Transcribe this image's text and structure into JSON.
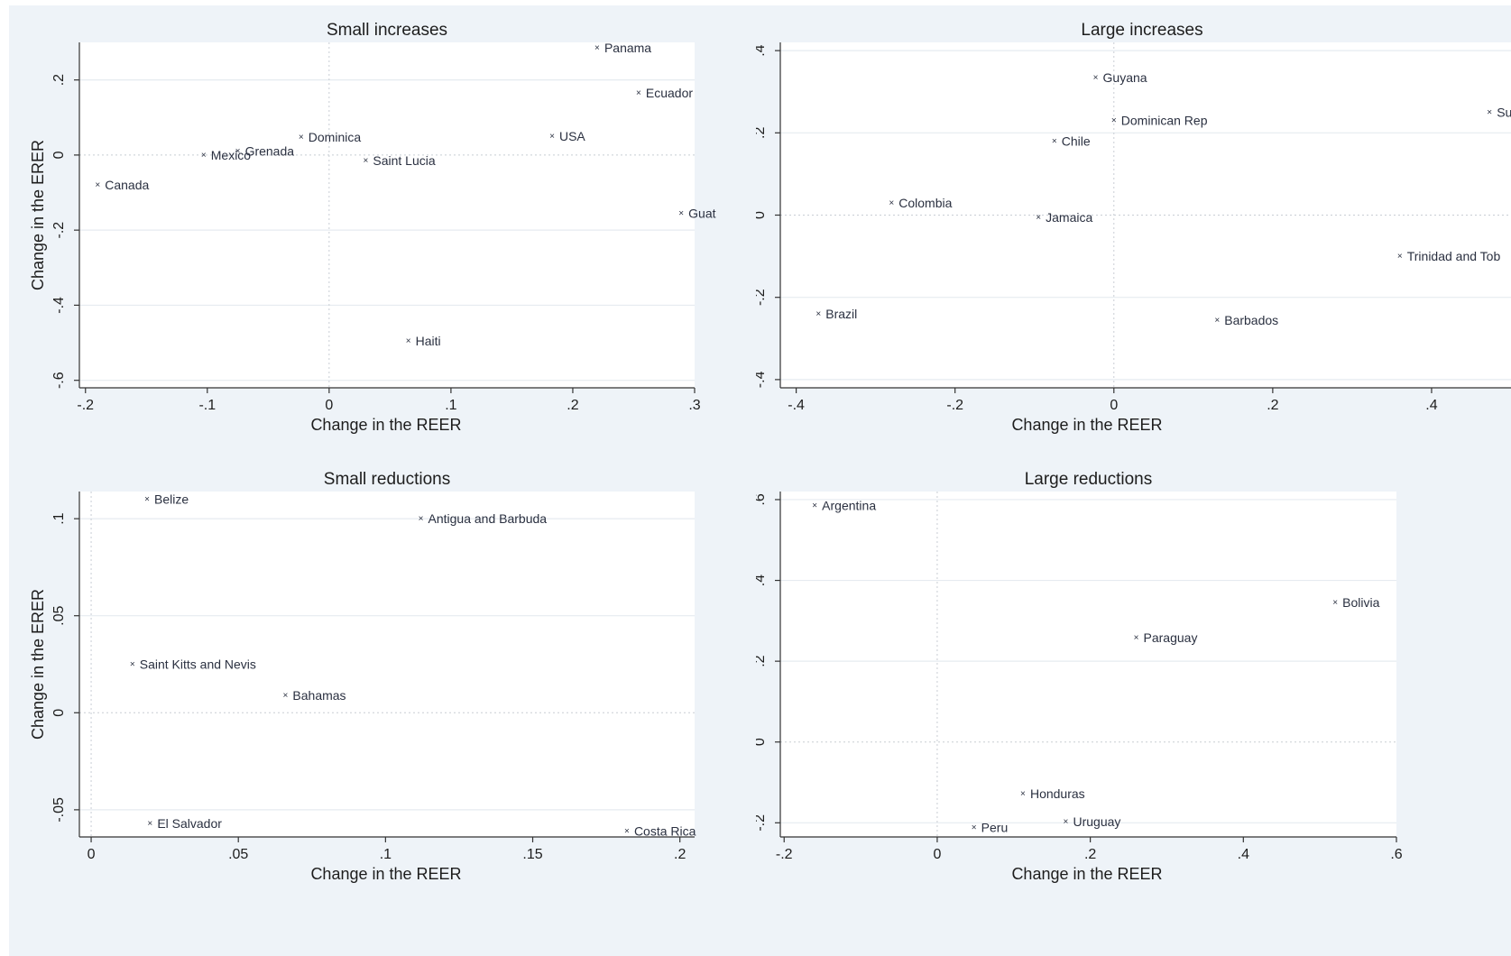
{
  "figure": {
    "background": "#eef3f8",
    "plot_bg": "#ffffff",
    "grid_color": "#e6ebf0",
    "text_color": "#1d1d1d"
  },
  "chart_data": [
    {
      "type": "scatter",
      "title": "Small increases",
      "xlabel": "Change in the REER",
      "ylabel": "Change in the ERER",
      "xlim": [
        -0.205,
        0.3
      ],
      "ylim": [
        -0.62,
        0.3
      ],
      "xticks": [
        {
          "v": -0.2,
          "label": "-.2"
        },
        {
          "v": -0.1,
          "label": "-.1"
        },
        {
          "v": 0,
          "label": "0"
        },
        {
          "v": 0.1,
          "label": ".1"
        },
        {
          "v": 0.2,
          "label": ".2"
        },
        {
          "v": 0.3,
          "label": ".3"
        }
      ],
      "yticks": [
        {
          "v": 0.2,
          "label": ".2"
        },
        {
          "v": 0,
          "label": "0"
        },
        {
          "v": -0.2,
          "label": "-.2"
        },
        {
          "v": -0.4,
          "label": "-.4"
        },
        {
          "v": -0.6,
          "label": "-.6"
        }
      ],
      "hgrid": [
        0.2,
        -0.2,
        -0.4,
        -0.6
      ],
      "zero_x": 0,
      "zero_y": 0,
      "points": [
        {
          "label": "Panama",
          "x": 0.22,
          "y": 0.285
        },
        {
          "label": "Ecuador",
          "x": 0.254,
          "y": 0.165
        },
        {
          "label": "USA",
          "x": 0.183,
          "y": 0.05
        },
        {
          "label": "Dominica",
          "x": -0.023,
          "y": 0.048
        },
        {
          "label": "Grenada",
          "x": -0.075,
          "y": 0.01
        },
        {
          "label": "Mexico",
          "x": -0.103,
          "y": 0.0
        },
        {
          "label": "Saint Lucia",
          "x": 0.03,
          "y": -0.015
        },
        {
          "label": "Canada",
          "x": -0.19,
          "y": -0.08
        },
        {
          "label": "Guat",
          "x": 0.289,
          "y": -0.155
        },
        {
          "label": "Haiti",
          "x": 0.065,
          "y": -0.495
        }
      ]
    },
    {
      "type": "scatter",
      "title": "Large increases",
      "xlabel": "Change in the REER",
      "ylabel": "Change in the ERER",
      "xlim": [
        -0.42,
        0.5
      ],
      "ylim": [
        -0.42,
        0.42
      ],
      "xticks": [
        {
          "v": -0.4,
          "label": "-.4"
        },
        {
          "v": -0.2,
          "label": "-.2"
        },
        {
          "v": 0,
          "label": "0"
        },
        {
          "v": 0.2,
          "label": ".2"
        },
        {
          "v": 0.4,
          "label": ".4"
        }
      ],
      "yticks": [
        {
          "v": 0.4,
          "label": ".4"
        },
        {
          "v": 0.2,
          "label": ".2"
        },
        {
          "v": 0,
          "label": "0"
        },
        {
          "v": -0.2,
          "label": "-.2"
        },
        {
          "v": -0.4,
          "label": "-.4"
        }
      ],
      "hgrid": [
        0.4,
        0.2,
        -0.2,
        -0.4
      ],
      "zero_x": 0,
      "zero_y": 0,
      "points": [
        {
          "label": "Guyana",
          "x": -0.023,
          "y": 0.335
        },
        {
          "label": "Dominican Rep",
          "x": 0.0,
          "y": 0.23
        },
        {
          "label": "Suri",
          "x": 0.473,
          "y": 0.25
        },
        {
          "label": "Chile",
          "x": -0.075,
          "y": 0.18
        },
        {
          "label": "Colombia",
          "x": -0.28,
          "y": 0.03
        },
        {
          "label": "Jamaica",
          "x": -0.095,
          "y": -0.005
        },
        {
          "label": "Trinidad and Tob",
          "x": 0.36,
          "y": -0.1
        },
        {
          "label": "Brazil",
          "x": -0.372,
          "y": -0.24
        },
        {
          "label": "Barbados",
          "x": 0.13,
          "y": -0.255
        }
      ]
    },
    {
      "type": "scatter",
      "title": "Small reductions",
      "xlabel": "Change in the REER",
      "ylabel": "Change in the ERER",
      "xlim": [
        -0.004,
        0.205
      ],
      "ylim": [
        -0.064,
        0.114
      ],
      "xticks": [
        {
          "v": 0,
          "label": "0"
        },
        {
          "v": 0.05,
          "label": ".05"
        },
        {
          "v": 0.1,
          "label": ".1"
        },
        {
          "v": 0.15,
          "label": ".15"
        },
        {
          "v": 0.2,
          "label": ".2"
        }
      ],
      "yticks": [
        {
          "v": 0.1,
          "label": ".1"
        },
        {
          "v": 0.05,
          "label": ".05"
        },
        {
          "v": 0,
          "label": "0"
        },
        {
          "v": -0.05,
          "label": "-.05"
        }
      ],
      "hgrid": [
        0.1,
        0.05,
        -0.05
      ],
      "zero_x": 0,
      "zero_y": 0,
      "points": [
        {
          "label": "Belize",
          "x": 0.019,
          "y": 0.11
        },
        {
          "label": "Antigua and Barbuda",
          "x": 0.112,
          "y": 0.1
        },
        {
          "label": "Saint Kitts and Nevis",
          "x": 0.014,
          "y": 0.025
        },
        {
          "label": "Bahamas",
          "x": 0.066,
          "y": 0.009
        },
        {
          "label": "El Salvador",
          "x": 0.02,
          "y": -0.057
        },
        {
          "label": "Costa Rica",
          "x": 0.182,
          "y": -0.061
        }
      ]
    },
    {
      "type": "scatter",
      "title": "Large reductions",
      "xlabel": "Change in the REER",
      "ylabel": "Change in the ERER",
      "xlim": [
        -0.205,
        0.6
      ],
      "ylim": [
        -0.235,
        0.62
      ],
      "xticks": [
        {
          "v": -0.2,
          "label": "-.2"
        },
        {
          "v": 0,
          "label": "0"
        },
        {
          "v": 0.2,
          "label": ".2"
        },
        {
          "v": 0.4,
          "label": ".4"
        },
        {
          "v": 0.6,
          "label": ".6"
        }
      ],
      "yticks": [
        {
          "v": 0.6,
          "label": ".6"
        },
        {
          "v": 0.4,
          "label": ".4"
        },
        {
          "v": 0.2,
          "label": ".2"
        },
        {
          "v": 0,
          "label": "0"
        },
        {
          "v": -0.2,
          "label": "-.2"
        }
      ],
      "hgrid": [
        0.6,
        0.4,
        0.2,
        -0.2
      ],
      "zero_x": 0,
      "zero_y": 0,
      "points": [
        {
          "label": "Argentina",
          "x": -0.16,
          "y": 0.585
        },
        {
          "label": "Bolivia",
          "x": 0.52,
          "y": 0.345
        },
        {
          "label": "Paraguay",
          "x": 0.26,
          "y": 0.258
        },
        {
          "label": "Honduras",
          "x": 0.112,
          "y": -0.128
        },
        {
          "label": "Uruguay",
          "x": 0.168,
          "y": -0.197
        },
        {
          "label": "Peru",
          "x": 0.048,
          "y": -0.212
        }
      ]
    }
  ]
}
